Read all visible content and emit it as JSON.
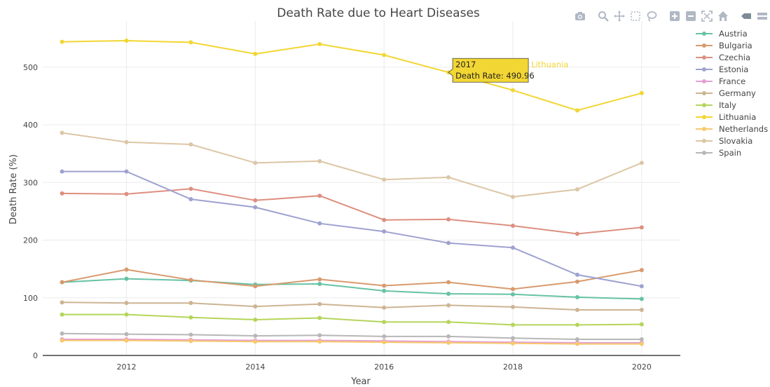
{
  "chart_data": {
    "type": "line",
    "title": "Death Rate due to Heart Diseases",
    "xlabel": "Year",
    "ylabel": "Death Rate (%)",
    "x": [
      2011,
      2012,
      2013,
      2014,
      2015,
      2016,
      2017,
      2018,
      2019,
      2020
    ],
    "xlim": [
      2010.7,
      2020.6
    ],
    "ylim": [
      0,
      580
    ],
    "xticks": [
      2012,
      2014,
      2016,
      2018,
      2020
    ],
    "yticks": [
      0,
      100,
      200,
      300,
      400,
      500
    ],
    "grid": true,
    "legend_position": "top-right",
    "series": [
      {
        "name": "Austria",
        "color": "#66c2a5",
        "values": [
          127,
          133,
          130,
          123,
          124,
          112,
          107,
          106,
          101,
          98
        ]
      },
      {
        "name": "Bulgaria",
        "color": "#d89a6e",
        "values": [
          127,
          149,
          131,
          120,
          132,
          121,
          127,
          115,
          128,
          148
        ]
      },
      {
        "name": "Czechia",
        "color": "#dd8f80",
        "values": [
          281,
          280,
          289,
          269,
          277,
          235,
          236,
          225,
          211,
          222
        ]
      },
      {
        "name": "Estonia",
        "color": "#9ea2cf",
        "values": [
          319,
          319,
          271,
          257,
          229,
          215,
          195,
          187,
          140,
          120
        ]
      },
      {
        "name": "France",
        "color": "#e79ed4",
        "values": [
          28,
          28,
          27,
          26,
          26,
          25,
          24,
          23,
          22,
          22
        ]
      },
      {
        "name": "Germany",
        "color": "#cdb493",
        "values": [
          92,
          91,
          91,
          85,
          89,
          83,
          87,
          84,
          79,
          79
        ]
      },
      {
        "name": "Italy",
        "color": "#b5d55a",
        "values": [
          71,
          71,
          66,
          62,
          65,
          58,
          58,
          53,
          53,
          54
        ]
      },
      {
        "name": "Lithuania",
        "color": "#f2d633",
        "values": [
          544,
          546,
          543,
          523,
          540,
          521,
          490.96,
          460,
          425,
          455
        ]
      },
      {
        "name": "Netherlands",
        "color": "#f6c96c",
        "values": [
          26,
          26,
          25,
          24,
          24,
          23,
          22,
          21,
          20,
          20
        ]
      },
      {
        "name": "Slovakia",
        "color": "#dcc6a6",
        "values": [
          386,
          370,
          366,
          334,
          337,
          305,
          309,
          275,
          288,
          334
        ]
      },
      {
        "name": "Spain",
        "color": "#b7b7b7",
        "values": [
          38,
          37,
          36,
          34,
          35,
          33,
          33,
          30,
          28,
          28
        ]
      }
    ],
    "hover": {
      "series": "Lithuania",
      "x_text": "2017",
      "value_text": "Death Rate: 490.96",
      "x": 2017,
      "y": 490.96
    }
  },
  "modebar": [
    "camera-icon",
    "zoom-icon",
    "pan-icon",
    "box-select-icon",
    "lasso-icon",
    "zoom-in-icon",
    "zoom-out-icon",
    "autoscale-icon",
    "reset-axes-icon",
    "hover-closest-icon",
    "hover-compare-icon",
    "plotly-logo-icon"
  ]
}
